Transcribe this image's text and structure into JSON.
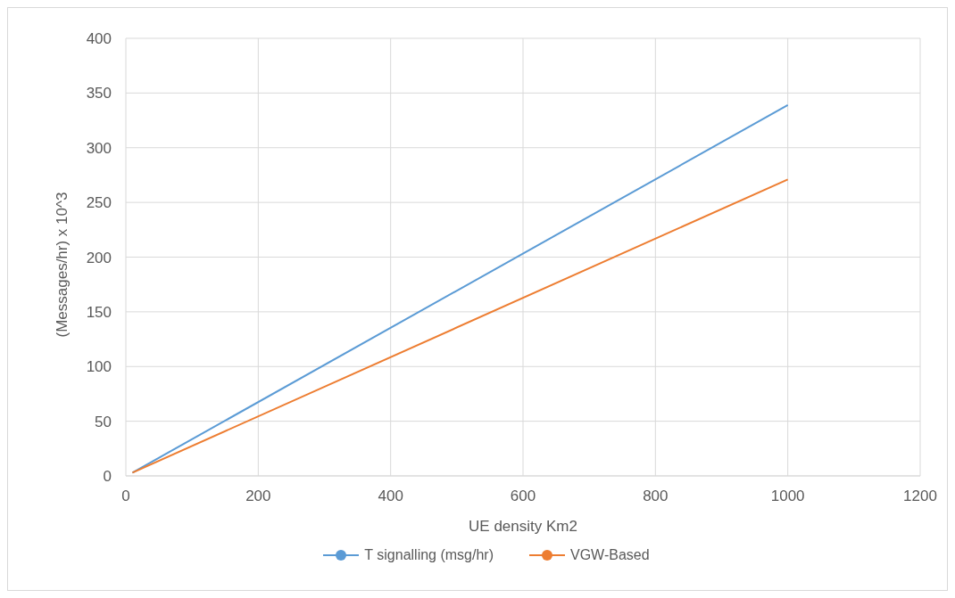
{
  "chart_data": {
    "type": "line",
    "xlabel": "UE density Km2",
    "ylabel": "(Messages/hr) x 10^3",
    "x": [
      10,
      1000
    ],
    "series": [
      {
        "name": "T signalling (msg/hr)",
        "color": "#5b9bd5",
        "values": [
          3,
          339
        ]
      },
      {
        "name": "VGW-Based",
        "color": "#ed7d31",
        "values": [
          3,
          271
        ]
      }
    ],
    "xlim": [
      0,
      1200
    ],
    "xticks": [
      0,
      200,
      400,
      600,
      800,
      1000,
      1200
    ],
    "ylim": [
      0,
      400
    ],
    "yticks": [
      0,
      50,
      100,
      150,
      200,
      250,
      300,
      350,
      400
    ],
    "grid": true,
    "legend": "bottom",
    "marker": "none",
    "line_style": "solid"
  }
}
